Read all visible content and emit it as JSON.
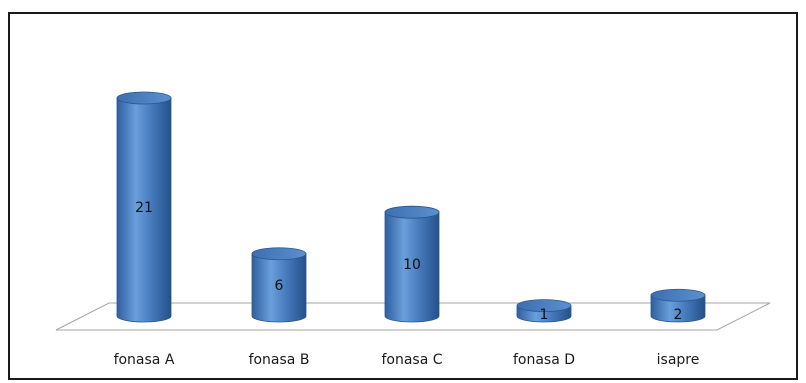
{
  "chart_data": {
    "type": "bar",
    "style": "3d-cylinder",
    "categories": [
      "fonasa A",
      "fonasa B",
      "fonasa C",
      "fonasa D",
      "isapre"
    ],
    "values": [
      21,
      6,
      10,
      1,
      2
    ],
    "data_labels": [
      "21",
      "6",
      "10",
      "1",
      "2"
    ],
    "title": "",
    "xlabel": "",
    "ylabel": "",
    "ylim": [
      0,
      21
    ],
    "grid": false,
    "legend": "none",
    "bar_color": "#4a7fc1"
  }
}
